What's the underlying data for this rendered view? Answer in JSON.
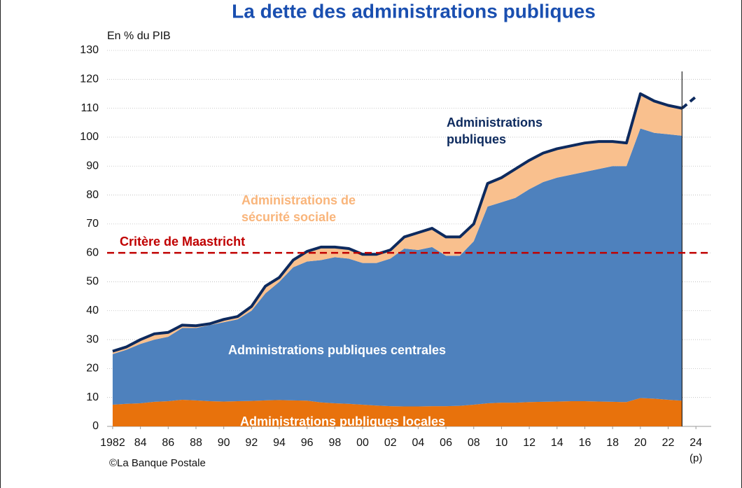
{
  "chart_data": {
    "type": "stacked_area",
    "title": "La dette des administrations publiques",
    "ylabel": "En % du PIB",
    "source": "©La Banque Postale",
    "x": [
      1982,
      1983,
      1984,
      1985,
      1986,
      1987,
      1988,
      1989,
      1990,
      1991,
      1992,
      1993,
      1994,
      1995,
      1996,
      1997,
      1998,
      1999,
      2000,
      2001,
      2002,
      2003,
      2004,
      2005,
      2006,
      2007,
      2008,
      2009,
      2010,
      2011,
      2012,
      2013,
      2014,
      2015,
      2016,
      2017,
      2018,
      2019,
      2020,
      2021,
      2022,
      2023
    ],
    "series": [
      {
        "name": "Administrations publiques locales",
        "color": "#e8720c",
        "values": [
          7.5,
          7.8,
          8,
          8.5,
          8.7,
          9.2,
          9,
          8.7,
          8.6,
          8.7,
          8.8,
          9,
          9.1,
          9,
          8.9,
          8.3,
          8,
          7.8,
          7.5,
          7.2,
          7,
          6.9,
          6.9,
          7,
          7,
          7.1,
          7.5,
          8,
          8.2,
          8.2,
          8.4,
          8.5,
          8.6,
          8.7,
          8.7,
          8.6,
          8.5,
          8.4,
          9.8,
          9.6,
          9.2,
          8.9
        ]
      },
      {
        "name": "Administrations publiques centrales",
        "color": "#4e81bd",
        "values": [
          17.5,
          18.7,
          20.5,
          21.5,
          22.3,
          24.8,
          25,
          26.3,
          27.4,
          28.3,
          31.2,
          37,
          40.9,
          46,
          48.1,
          49.2,
          50.5,
          50.2,
          49,
          49.3,
          51,
          54.6,
          54.1,
          55,
          52,
          51.9,
          56.5,
          68,
          69.3,
          70.8,
          73.6,
          76,
          77.4,
          78.3,
          79.3,
          80.4,
          81.5,
          81.6,
          93.2,
          91.9,
          91.8,
          91.6
        ]
      },
      {
        "name": "Administrations de sécurité sociale",
        "color": "#f9c08e",
        "values": [
          1,
          1,
          1.5,
          2,
          1.5,
          1,
          0.8,
          0.5,
          1,
          1,
          1.5,
          2.5,
          1.5,
          2.5,
          3.5,
          4.5,
          3.5,
          3.5,
          3,
          3,
          3,
          4,
          6,
          6.5,
          6.5,
          6.5,
          6,
          8,
          8.5,
          10,
          10,
          10,
          10,
          10,
          10,
          9.5,
          8.5,
          8,
          12,
          11,
          10,
          9.5
        ]
      }
    ],
    "total": {
      "name": "Administrations publiques",
      "color": "#0d2a5e",
      "x": [
        1982,
        1983,
        1984,
        1985,
        1986,
        1987,
        1988,
        1989,
        1990,
        1991,
        1992,
        1993,
        1994,
        1995,
        1996,
        1997,
        1998,
        1999,
        2000,
        2001,
        2002,
        2003,
        2004,
        2005,
        2006,
        2007,
        2008,
        2009,
        2010,
        2011,
        2012,
        2013,
        2014,
        2015,
        2016,
        2017,
        2018,
        2019,
        2020,
        2021,
        2022,
        2023,
        2024
      ],
      "values": [
        26,
        27.5,
        30,
        32,
        32.5,
        35,
        34.8,
        35.5,
        37,
        38,
        41.5,
        48.5,
        51.5,
        57.5,
        60.5,
        62,
        62,
        61.5,
        59.5,
        59.5,
        61,
        65.5,
        67,
        68.5,
        65.5,
        65.5,
        70,
        84,
        86,
        89,
        92,
        94.5,
        96,
        97,
        98,
        98.5,
        98.5,
        98,
        115,
        112.5,
        111,
        110,
        114
      ]
    },
    "forecast_start": 2023,
    "forecast_label": "(p)",
    "reference": {
      "label": "Critère de Maastricht",
      "value": 60,
      "color": "#c00000"
    },
    "xlim": [
      1981.6,
      2025.1
    ],
    "xticks": [
      {
        "value": 1982,
        "label": "1982"
      },
      {
        "value": 1984,
        "label": "84"
      },
      {
        "value": 1986,
        "label": "86"
      },
      {
        "value": 1988,
        "label": "88"
      },
      {
        "value": 1990,
        "label": "90"
      },
      {
        "value": 1992,
        "label": "92"
      },
      {
        "value": 1994,
        "label": "94"
      },
      {
        "value": 1996,
        "label": "96"
      },
      {
        "value": 1998,
        "label": "98"
      },
      {
        "value": 2000,
        "label": "00"
      },
      {
        "value": 2002,
        "label": "02"
      },
      {
        "value": 2004,
        "label": "04"
      },
      {
        "value": 2006,
        "label": "06"
      },
      {
        "value": 2008,
        "label": "08"
      },
      {
        "value": 2010,
        "label": "10"
      },
      {
        "value": 2012,
        "label": "12"
      },
      {
        "value": 2014,
        "label": "14"
      },
      {
        "value": 2016,
        "label": "16"
      },
      {
        "value": 2018,
        "label": "18"
      },
      {
        "value": 2020,
        "label": "20"
      },
      {
        "value": 2022,
        "label": "22"
      },
      {
        "value": 2024,
        "label": "24"
      }
    ],
    "ylim": [
      0,
      130
    ],
    "yticks": [
      0,
      10,
      20,
      30,
      40,
      50,
      60,
      70,
      80,
      90,
      100,
      110,
      120,
      130
    ],
    "grid": true
  }
}
